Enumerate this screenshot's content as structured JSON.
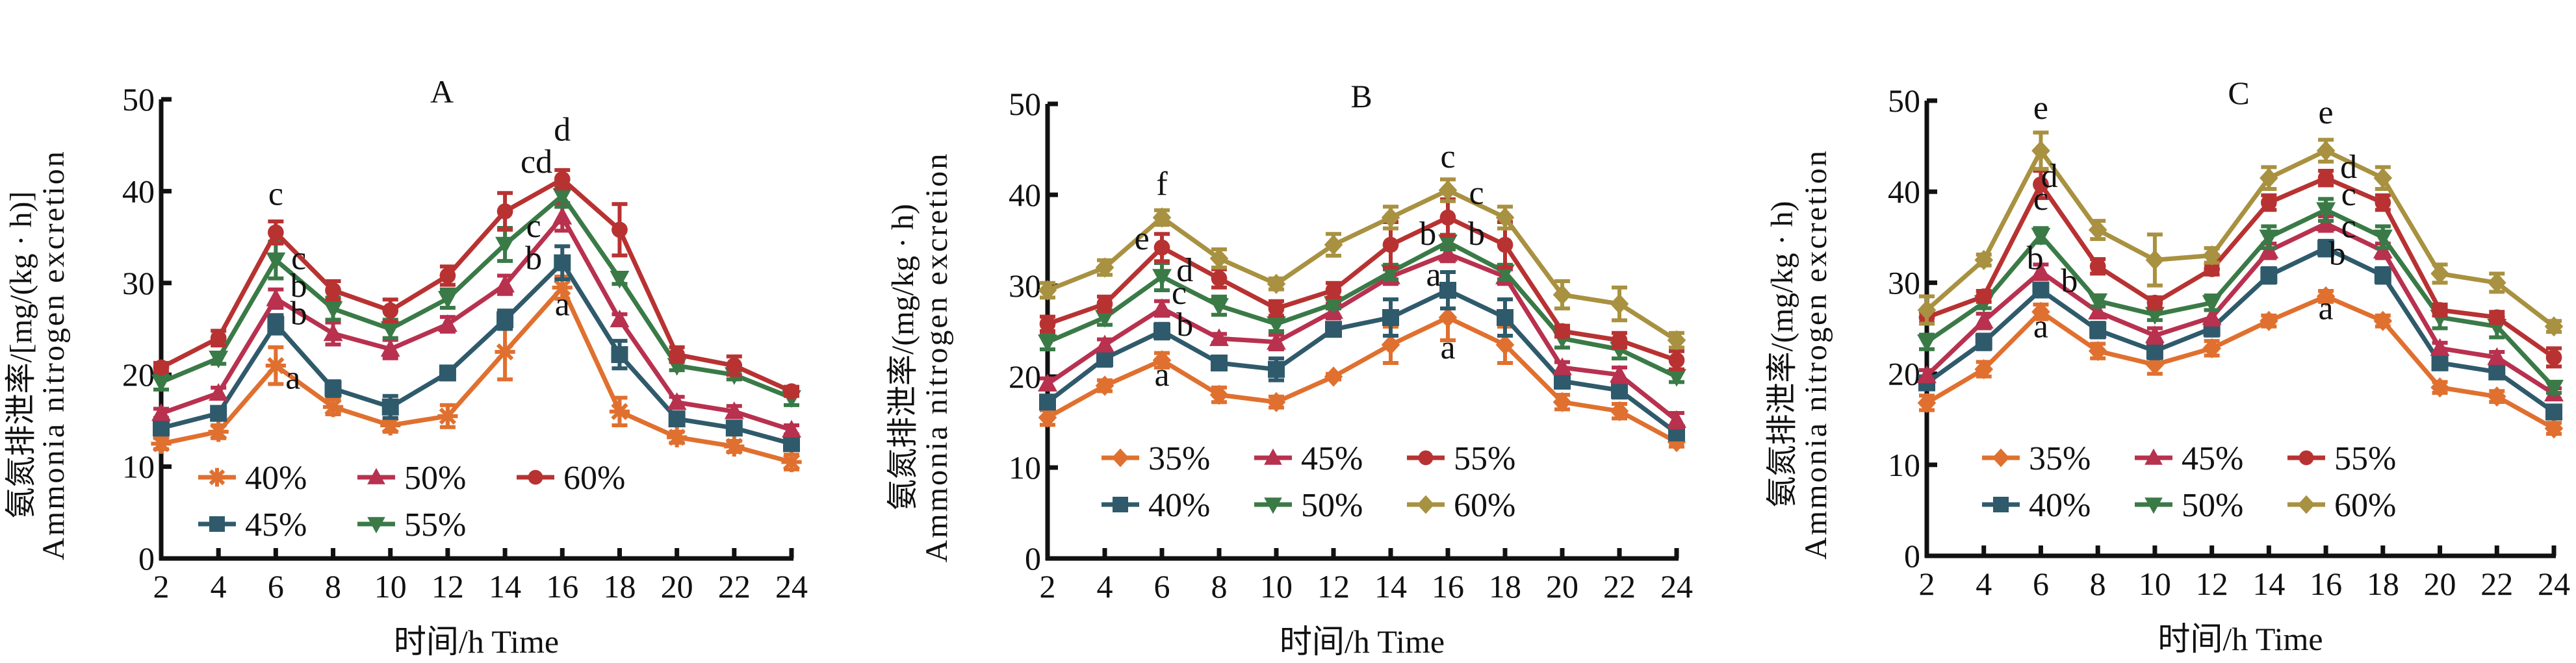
{
  "chart_data": [
    {
      "type": "line",
      "panel": "A",
      "title": "A",
      "xlabel": "时间/h Time",
      "ylabel_cn": "氨氮排泄率/[mg/(kg · h)]",
      "ylabel_en": "Ammonia nitrogen excretion",
      "x": [
        2,
        4,
        6,
        8,
        10,
        12,
        14,
        16,
        18,
        20,
        22,
        24
      ],
      "x_tick_labels": [
        "2",
        "4",
        "6",
        "8",
        "10",
        "12",
        "14",
        "16",
        "18",
        "20",
        "22",
        "24"
      ],
      "ylim": [
        0,
        50
      ],
      "y_ticks": [
        0,
        10,
        20,
        30,
        40,
        50
      ],
      "y_tick_labels": [
        "0",
        "10",
        "20",
        "30",
        "40",
        "50"
      ],
      "grid": false,
      "legend_position": "bottom-left",
      "series": [
        {
          "name": "40%",
          "marker": "asterisk",
          "color": "#E0702F",
          "values": [
            12.5,
            13.8,
            21.0,
            16.5,
            14.5,
            15.5,
            22.5,
            29.5,
            16.0,
            13.2,
            12.2,
            10.5
          ],
          "errors": [
            0.6,
            0.7,
            2.0,
            0.8,
            0.7,
            1.2,
            3.0,
            1.2,
            1.5,
            0.6,
            0.6,
            0.8
          ]
        },
        {
          "name": "45%",
          "marker": "square",
          "color": "#2F5A6B",
          "values": [
            14.2,
            15.8,
            25.5,
            18.5,
            16.5,
            20.2,
            26.0,
            32.2,
            22.2,
            15.2,
            14.2,
            12.5
          ],
          "errors": [
            0.5,
            0.6,
            1.0,
            0.8,
            1.2,
            0.6,
            1.0,
            1.8,
            1.5,
            0.5,
            0.5,
            0.6
          ]
        },
        {
          "name": "50%",
          "marker": "triangle-up",
          "color": "#B8314F",
          "values": [
            15.8,
            18.0,
            28.3,
            24.5,
            22.8,
            25.5,
            29.8,
            37.2,
            26.0,
            17.0,
            16.0,
            14.0
          ],
          "errors": [
            0.5,
            0.6,
            1.0,
            1.2,
            1.0,
            0.8,
            1.0,
            1.5,
            0.6,
            0.6,
            0.6,
            0.5
          ]
        },
        {
          "name": "55%",
          "marker": "triangle-down",
          "color": "#3A7A47",
          "values": [
            19.2,
            21.8,
            32.5,
            27.2,
            25.0,
            28.3,
            34.2,
            39.5,
            30.5,
            21.0,
            20.0,
            17.5
          ],
          "errors": [
            0.8,
            0.6,
            2.0,
            1.2,
            1.0,
            1.0,
            1.8,
            1.2,
            0.6,
            0.5,
            0.5,
            0.8
          ]
        },
        {
          "name": "60%",
          "marker": "circle",
          "color": "#B83232",
          "values": [
            20.8,
            24.0,
            35.5,
            29.2,
            27.0,
            30.8,
            37.8,
            41.3,
            35.8,
            22.2,
            21.0,
            18.2
          ],
          "errors": [
            0.5,
            0.8,
            1.2,
            1.0,
            1.2,
            1.0,
            2.0,
            1.0,
            2.8,
            0.8,
            1.0,
            0.5
          ]
        }
      ],
      "annotations": [
        {
          "text": "c",
          "x": 6,
          "y": 38.5
        },
        {
          "text": "c",
          "x": 6.8,
          "y": 31.5
        },
        {
          "text": "b",
          "x": 6.8,
          "y": 28.5
        },
        {
          "text": "b",
          "x": 6.8,
          "y": 25.5
        },
        {
          "text": "a",
          "x": 6.6,
          "y": 18.5
        },
        {
          "text": "cd",
          "x": 15.1,
          "y": 42.0
        },
        {
          "text": "d",
          "x": 16.0,
          "y": 45.5
        },
        {
          "text": "c",
          "x": 15.0,
          "y": 35.0
        },
        {
          "text": "b",
          "x": 15.0,
          "y": 31.5
        },
        {
          "text": "a",
          "x": 16.0,
          "y": 26.5
        }
      ],
      "legend": [
        "40%",
        "50%",
        "60%",
        "45%",
        "55%"
      ]
    },
    {
      "type": "line",
      "panel": "B",
      "title": "B",
      "xlabel": "时间/h Time",
      "ylabel_cn": "氨氮排泄率/(mg/kg · h)",
      "ylabel_en": "Ammonia nitrogen excretion",
      "x": [
        2,
        4,
        6,
        8,
        10,
        12,
        14,
        16,
        18,
        20,
        22,
        24
      ],
      "x_tick_labels": [
        "2",
        "4",
        "6",
        "8",
        "10",
        "12",
        "14",
        "16",
        "18",
        "20",
        "22",
        "24"
      ],
      "ylim": [
        0,
        50
      ],
      "y_ticks": [
        0,
        10,
        20,
        30,
        40,
        50
      ],
      "y_tick_labels": [
        "0",
        "10",
        "20",
        "30",
        "40",
        "50"
      ],
      "grid": false,
      "legend_position": "bottom-left",
      "series": [
        {
          "name": "35%",
          "marker": "diamond",
          "color": "#E0702F",
          "values": [
            15.5,
            19.0,
            21.8,
            18.0,
            17.2,
            20.0,
            23.5,
            26.5,
            23.5,
            17.2,
            16.2,
            12.8
          ],
          "errors": [
            0.8,
            0.6,
            0.8,
            0.8,
            0.6,
            0.3,
            2.0,
            2.5,
            2.0,
            0.8,
            0.8,
            0.5
          ]
        },
        {
          "name": "40%",
          "marker": "square",
          "color": "#2F5A6B",
          "values": [
            17.2,
            22.0,
            25.0,
            21.5,
            20.8,
            25.2,
            26.5,
            29.5,
            26.5,
            19.5,
            18.5,
            13.8
          ],
          "errors": [
            0.5,
            0.8,
            0.8,
            0.6,
            1.2,
            0.6,
            2.0,
            2.0,
            2.0,
            0.6,
            0.8,
            0.6
          ]
        },
        {
          "name": "45%",
          "marker": "triangle-up",
          "color": "#B8314F",
          "values": [
            19.2,
            23.5,
            27.5,
            24.2,
            23.8,
            27.2,
            31.0,
            33.5,
            31.0,
            21.0,
            20.2,
            15.2
          ],
          "errors": [
            0.6,
            0.6,
            0.8,
            0.5,
            0.8,
            0.8,
            0.8,
            0.8,
            0.8,
            0.6,
            0.8,
            0.8
          ]
        },
        {
          "name": "50%",
          "marker": "triangle-down",
          "color": "#3A7A47",
          "values": [
            23.8,
            26.5,
            31.0,
            27.8,
            25.8,
            28.0,
            31.5,
            34.8,
            31.5,
            24.2,
            23.0,
            20.0
          ],
          "errors": [
            0.8,
            0.8,
            1.5,
            1.0,
            0.8,
            0.5,
            0.8,
            0.8,
            0.8,
            1.0,
            1.0,
            0.6
          ]
        },
        {
          "name": "55%",
          "marker": "circle",
          "color": "#B83232",
          "values": [
            25.8,
            28.0,
            34.2,
            30.8,
            27.5,
            29.5,
            34.5,
            37.5,
            34.5,
            25.0,
            24.0,
            21.8
          ],
          "errors": [
            0.8,
            0.8,
            1.5,
            1.0,
            0.8,
            0.8,
            2.5,
            2.0,
            2.5,
            0.6,
            0.8,
            1.0
          ]
        },
        {
          "name": "60%",
          "marker": "diamond",
          "color": "#A89140",
          "values": [
            29.5,
            32.0,
            37.5,
            33.0,
            30.2,
            34.5,
            37.5,
            40.5,
            37.5,
            29.0,
            28.0,
            24.0
          ],
          "errors": [
            0.8,
            0.8,
            0.8,
            1.0,
            0.6,
            1.2,
            1.2,
            1.2,
            1.2,
            1.5,
            1.8,
            0.8
          ]
        }
      ],
      "annotations": [
        {
          "text": "f",
          "x": 6.0,
          "y": 40.0
        },
        {
          "text": "e",
          "x": 5.3,
          "y": 34.0
        },
        {
          "text": "d",
          "x": 6.8,
          "y": 30.5
        },
        {
          "text": "c",
          "x": 6.6,
          "y": 28.0
        },
        {
          "text": "b",
          "x": 6.8,
          "y": 24.5
        },
        {
          "text": "a",
          "x": 6.0,
          "y": 19.0
        },
        {
          "text": "c",
          "x": 16.0,
          "y": 43.0
        },
        {
          "text": "c",
          "x": 17.0,
          "y": 39.0
        },
        {
          "text": "b",
          "x": 15.3,
          "y": 34.5
        },
        {
          "text": "b",
          "x": 17.0,
          "y": 34.5
        },
        {
          "text": "a",
          "x": 15.5,
          "y": 30.0
        },
        {
          "text": "a",
          "x": 16.0,
          "y": 22.0
        }
      ],
      "legend": [
        "35%",
        "45%",
        "55%",
        "40%",
        "50%",
        "60%"
      ]
    },
    {
      "type": "line",
      "panel": "C",
      "title": "C",
      "xlabel": "时间/h Time",
      "ylabel_cn": "氨氮排泄率/(mg/kg · h)",
      "ylabel_en": "Ammonia nitrogen excretion",
      "x": [
        2,
        4,
        6,
        8,
        10,
        12,
        14,
        16,
        18,
        20,
        22,
        24
      ],
      "x_tick_labels": [
        "2",
        "4",
        "6",
        "8",
        "10",
        "12",
        "14",
        "16",
        "18",
        "20",
        "22",
        "24"
      ],
      "ylim": [
        0,
        50
      ],
      "y_ticks": [
        0,
        10,
        20,
        30,
        40,
        50
      ],
      "y_tick_labels": [
        "0",
        "10",
        "20",
        "30",
        "40",
        "50"
      ],
      "grid": false,
      "legend_position": "bottom-left",
      "series": [
        {
          "name": "35%",
          "marker": "diamond",
          "color": "#E0702F",
          "values": [
            16.8,
            20.5,
            26.8,
            22.5,
            21.0,
            22.8,
            25.8,
            28.5,
            25.8,
            18.5,
            17.5,
            14.0
          ],
          "errors": [
            0.8,
            0.8,
            0.8,
            0.8,
            1.0,
            0.8,
            0.6,
            0.6,
            0.6,
            0.6,
            0.6,
            0.6
          ]
        },
        {
          "name": "40%",
          "marker": "square",
          "color": "#2F5A6B",
          "values": [
            19.0,
            23.5,
            29.2,
            24.8,
            22.5,
            25.0,
            30.8,
            33.8,
            30.8,
            21.2,
            20.2,
            15.8
          ],
          "errors": [
            0.6,
            0.8,
            0.6,
            0.8,
            0.8,
            0.8,
            0.8,
            0.8,
            0.8,
            0.6,
            0.6,
            0.6
          ]
        },
        {
          "name": "45%",
          "marker": "triangle-up",
          "color": "#B8314F",
          "values": [
            19.8,
            25.8,
            31.2,
            26.8,
            24.2,
            26.2,
            33.5,
            36.5,
            33.5,
            22.8,
            21.8,
            17.8
          ],
          "errors": [
            0.6,
            0.8,
            0.8,
            0.6,
            0.8,
            0.8,
            0.8,
            0.8,
            0.8,
            0.6,
            0.6,
            0.6
          ]
        },
        {
          "name": "50%",
          "marker": "triangle-down",
          "color": "#3A7A47",
          "values": [
            23.5,
            27.8,
            35.2,
            28.0,
            26.5,
            27.8,
            35.0,
            38.0,
            35.0,
            26.2,
            25.2,
            18.5
          ],
          "errors": [
            0.8,
            0.6,
            0.8,
            0.6,
            0.6,
            0.8,
            1.2,
            1.2,
            1.2,
            1.2,
            1.2,
            0.6
          ]
        },
        {
          "name": "55%",
          "marker": "circle",
          "color": "#B83232",
          "values": [
            26.2,
            28.5,
            40.8,
            31.8,
            27.8,
            31.5,
            38.8,
            41.5,
            38.8,
            27.0,
            26.2,
            21.8
          ],
          "errors": [
            0.6,
            0.6,
            1.5,
            0.8,
            0.6,
            0.6,
            0.8,
            0.8,
            0.8,
            0.6,
            0.6,
            1.0
          ]
        },
        {
          "name": "60%",
          "marker": "diamond",
          "color": "#A89140",
          "values": [
            27.0,
            32.5,
            44.5,
            35.8,
            32.5,
            33.0,
            41.5,
            44.5,
            41.5,
            31.0,
            30.0,
            25.2
          ],
          "errors": [
            1.5,
            0.6,
            2.0,
            1.0,
            2.8,
            0.8,
            1.2,
            1.2,
            1.2,
            1.0,
            1.0,
            0.6
          ]
        }
      ],
      "annotations": [
        {
          "text": "e",
          "x": 6.0,
          "y": 48.0
        },
        {
          "text": "d",
          "x": 6.3,
          "y": 40.5
        },
        {
          "text": "c",
          "x": 6.0,
          "y": 38.0
        },
        {
          "text": "b",
          "x": 5.8,
          "y": 31.5
        },
        {
          "text": "b",
          "x": 7.0,
          "y": 29.0
        },
        {
          "text": "a",
          "x": 6.0,
          "y": 24.0
        },
        {
          "text": "e",
          "x": 16.0,
          "y": 47.5
        },
        {
          "text": "d",
          "x": 16.8,
          "y": 41.5
        },
        {
          "text": "c",
          "x": 16.8,
          "y": 38.5
        },
        {
          "text": "c",
          "x": 16.8,
          "y": 35.0
        },
        {
          "text": "b",
          "x": 16.4,
          "y": 32.0
        },
        {
          "text": "a",
          "x": 16.0,
          "y": 26.0
        }
      ],
      "legend": [
        "35%",
        "45%",
        "55%",
        "40%",
        "50%",
        "60%"
      ]
    }
  ]
}
